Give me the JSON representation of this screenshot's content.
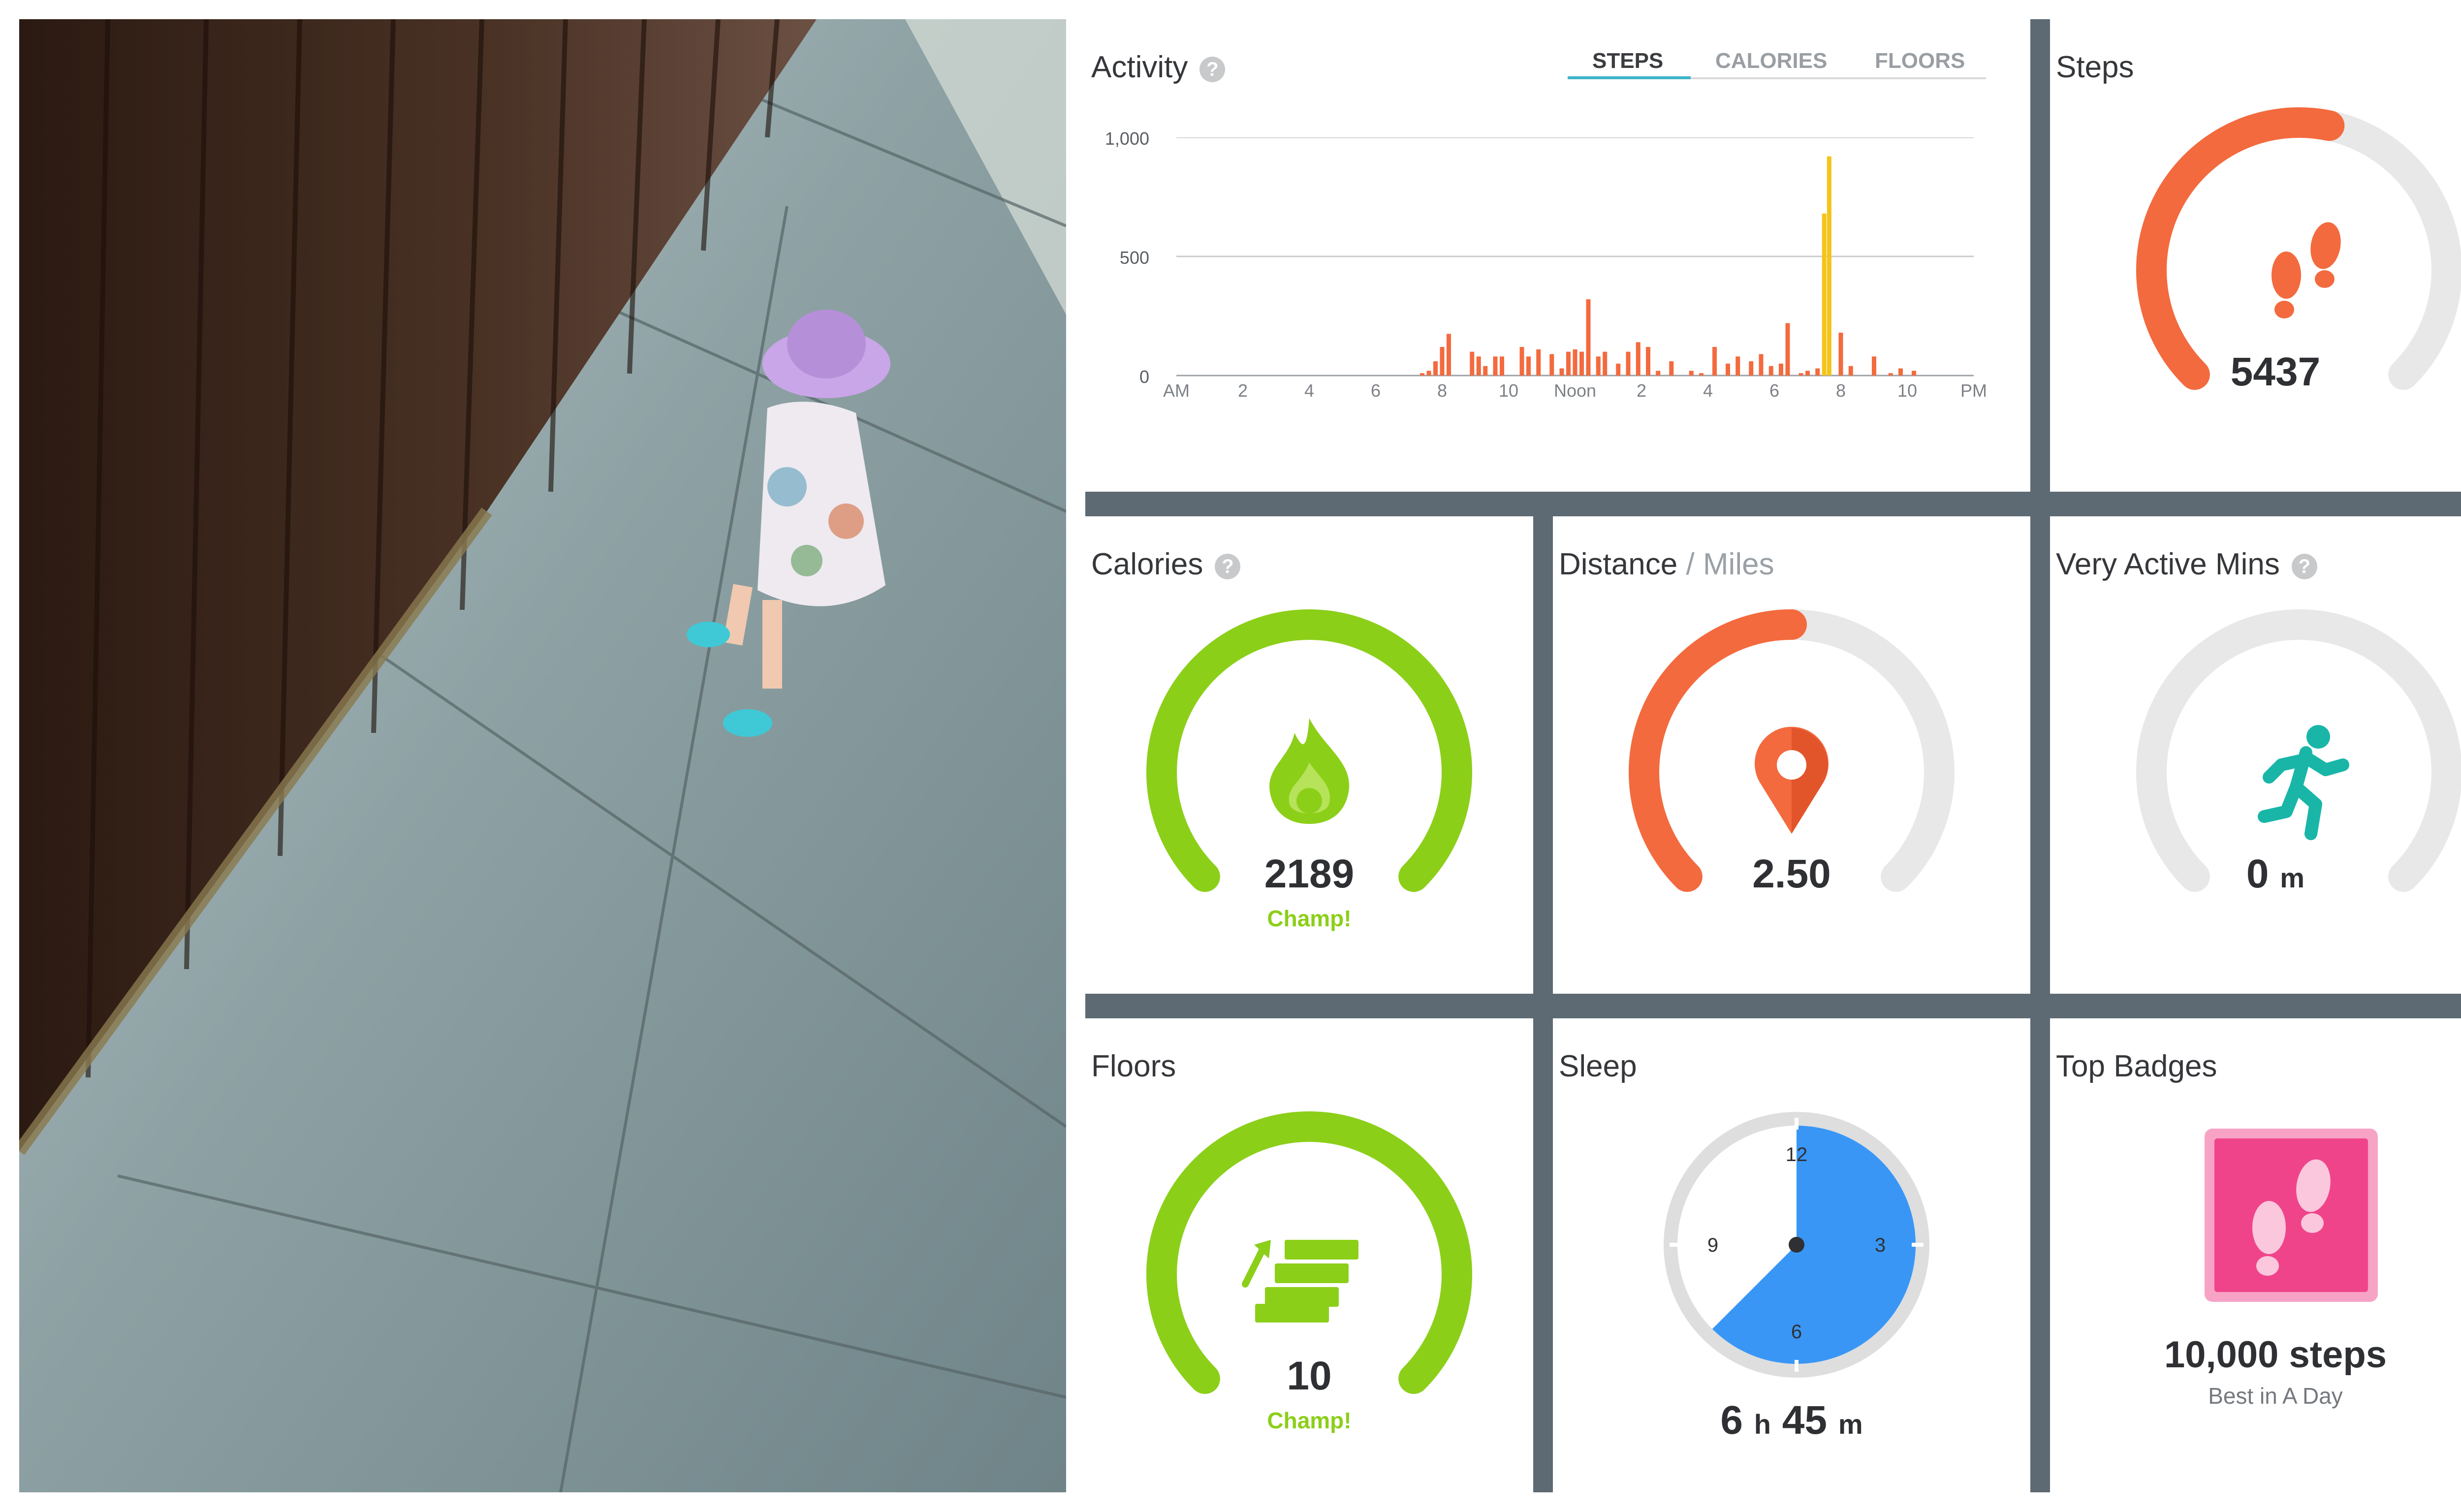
{
  "activity": {
    "title": "Activity",
    "tabs": [
      {
        "label": "STEPS",
        "active": true
      },
      {
        "label": "CALORIES",
        "active": false
      },
      {
        "label": "FLOORS",
        "active": false
      }
    ],
    "chart_data": {
      "type": "bar",
      "title": "",
      "xlabel": "",
      "ylabel": "",
      "ylim": [
        0,
        1000
      ],
      "yticks": [
        "0",
        "500",
        "1,000"
      ],
      "xticks": [
        "AM",
        "2",
        "4",
        "6",
        "8",
        "10",
        "Noon",
        "2",
        "4",
        "6",
        "8",
        "10",
        "PM"
      ],
      "x_unit": "hour of day",
      "grid": true,
      "series": [
        {
          "color": "#f36a3e",
          "x": [
            7.4,
            7.6,
            7.8,
            8.0,
            8.2,
            8.9,
            9.1,
            9.3,
            9.6,
            9.8,
            10.4,
            10.6,
            10.9,
            11.3,
            11.6,
            11.8,
            12.0,
            12.2,
            12.4,
            12.7,
            12.9,
            13.3,
            13.6,
            13.9,
            14.2,
            14.5,
            14.9,
            15.5,
            15.8,
            16.2,
            16.6,
            16.9,
            17.3,
            17.6,
            17.9,
            18.2,
            18.4,
            18.8,
            19.0,
            19.3,
            20.0,
            20.3,
            21.0,
            21.5,
            21.8,
            22.2
          ],
          "values": [
            10,
            20,
            60,
            120,
            175,
            100,
            80,
            40,
            80,
            80,
            120,
            80,
            110,
            90,
            30,
            100,
            110,
            100,
            320,
            80,
            100,
            50,
            100,
            140,
            120,
            20,
            60,
            20,
            10,
            120,
            50,
            80,
            60,
            90,
            40,
            50,
            220,
            10,
            20,
            30,
            180,
            40,
            80,
            10,
            30,
            20
          ]
        },
        {
          "color": "#f4c419",
          "x": [
            19.5,
            19.65
          ],
          "values": [
            680,
            920
          ]
        }
      ]
    }
  },
  "steps": {
    "title": "Steps",
    "value": "5437",
    "fraction": 0.5437,
    "color": "#f36a3e"
  },
  "calories": {
    "title": "Calories",
    "value": "2189",
    "status": "Champ!",
    "fraction": 1.0,
    "color": "#8ccf19"
  },
  "distance": {
    "title": "Distance",
    "subtitle": "/ Miles",
    "value": "2.50",
    "fraction": 0.5,
    "color": "#f36a3e"
  },
  "very_active": {
    "title": "Very Active Mins",
    "value": "0",
    "unit": "m",
    "fraction": 0.0,
    "color": "#19b6a8"
  },
  "floors": {
    "title": "Floors",
    "value": "10",
    "status": "Champ!",
    "fraction": 1.0,
    "color": "#8ccf19"
  },
  "sleep": {
    "title": "Sleep",
    "hours": "6",
    "hours_unit": "h",
    "minutes": "45",
    "minutes_unit": "m",
    "dial_labels": {
      "top": "12",
      "right": "3",
      "bottom": "6",
      "left": "9"
    },
    "start_hour": 0.0,
    "end_hour": 7.5,
    "color": "#3996f5"
  },
  "badges": {
    "title": "Top Badges",
    "badge_name": "10,000 steps",
    "badge_caption": "Best in A Day",
    "badge_color": "#f0448a"
  },
  "colors": {
    "track": "#e8e8e8",
    "frame": "#5d6a74",
    "help": "#c8c9cb"
  }
}
